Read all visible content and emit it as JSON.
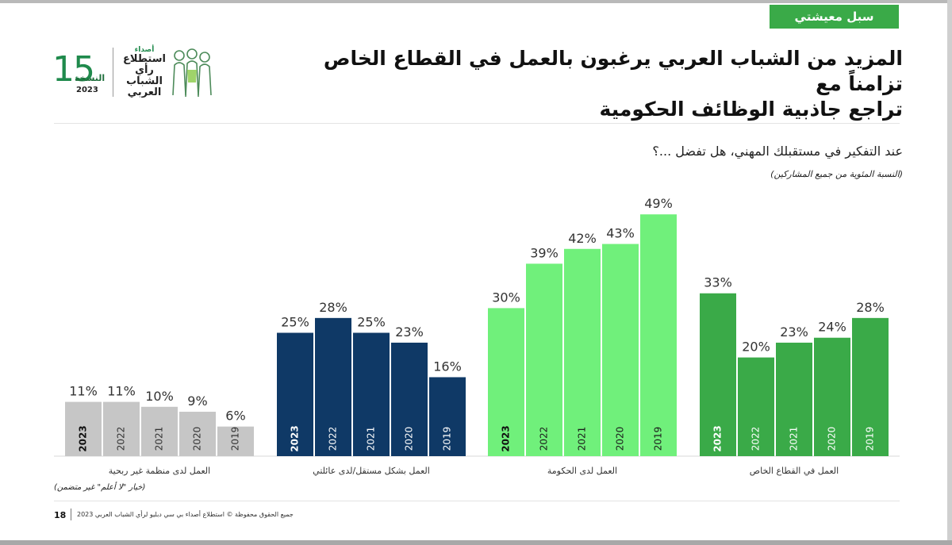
{
  "section_tag": "سبل معيشتي",
  "title_line1": "المزيد من الشباب العربي يرغبون بالعمل في القطاع الخاص تزامناً مع",
  "title_line2": "تراجع جاذبية الوظائف الحكومية",
  "logo": {
    "number": "15",
    "edition": "النسخة",
    "year": "2023",
    "survey_line1": "أصداء",
    "survey_line2": "استطلاع",
    "survey_line3": "رأي الشباب",
    "survey_line4": "العربي"
  },
  "question": "عند التفكير في مستقبلك المهني، هل تفضل ...؟",
  "base_note": "(النسبة المئوية من جميع المشاركين)",
  "footnote": "(خيار \"لا أعلم\" غير متضمن)",
  "footer": {
    "page": "18",
    "copyright": "جميع الحقوق محفوظة © استطلاع أصداء بي سي دبليو لرأي الشباب العربي 2023"
  },
  "colors": {
    "gray": "#c6c6c6",
    "navy": "#0f3966",
    "light_green": "#70f07b",
    "green": "#3aaa48",
    "tag": "#3aaa48"
  },
  "chart_data": {
    "type": "bar",
    "title": "عند التفكير في مستقبلك المهني، هل تفضل ...؟",
    "ylabel": "النسبة المئوية من جميع المشاركين",
    "ylim": [
      0,
      50
    ],
    "unit": "%",
    "categories": [
      "2023",
      "2022",
      "2021",
      "2020",
      "2019"
    ],
    "groups": [
      {
        "name": "العمل لدى منظمة غير ربحية",
        "color": "#c6c6c6",
        "values": [
          11,
          11,
          10,
          9,
          6
        ]
      },
      {
        "name": "العمل بشكل مستقل/لدى عائلتي",
        "color": "#0f3966",
        "values": [
          25,
          28,
          25,
          23,
          16
        ]
      },
      {
        "name": "العمل لدى الحكومة",
        "color": "#70f07b",
        "values": [
          30,
          39,
          42,
          43,
          49
        ]
      },
      {
        "name": "العمل في القطاع الخاص",
        "color": "#3aaa48",
        "values": [
          33,
          20,
          23,
          24,
          28
        ]
      }
    ]
  }
}
